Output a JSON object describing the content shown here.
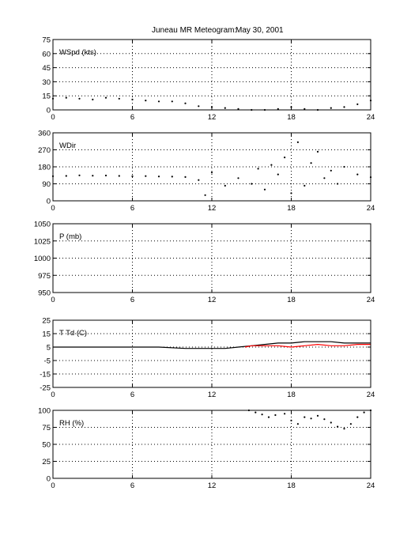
{
  "title": {
    "station": "Juneau MR Meteogram:",
    "date": "May 30, 2001"
  },
  "chart_data": [
    {
      "type": "scatter",
      "title": "WSpd (kts)",
      "ylabel": "WSpd (kts)",
      "xlim": [
        0,
        24
      ],
      "ylim": [
        0,
        75
      ],
      "xticks": [
        0,
        6,
        12,
        18,
        24
      ],
      "yticks": [
        0,
        15,
        30,
        45,
        60,
        75
      ],
      "grid": true,
      "series": [
        {
          "color": "#000000",
          "x": [
            0,
            1,
            2,
            3,
            4,
            5,
            6,
            7,
            8,
            9,
            10,
            11,
            12,
            13,
            14,
            15,
            16,
            17,
            18,
            19,
            20,
            21,
            22,
            23,
            24
          ],
          "y": [
            12,
            13,
            12,
            11,
            13,
            12,
            11,
            10,
            9,
            9,
            7,
            4,
            3,
            2,
            1,
            0,
            0,
            1,
            3,
            1,
            0,
            2,
            3,
            6,
            10
          ]
        }
      ]
    },
    {
      "type": "scatter",
      "title": "WDir",
      "ylabel": "WDir",
      "xlim": [
        0,
        24
      ],
      "ylim": [
        0,
        360
      ],
      "xticks": [
        0,
        6,
        12,
        18,
        24
      ],
      "yticks": [
        0,
        90,
        180,
        270,
        360
      ],
      "grid": true,
      "series": [
        {
          "color": "#000000",
          "x": [
            0,
            1,
            2,
            3,
            4,
            5,
            6,
            7,
            8,
            9,
            10,
            11,
            11.5,
            12,
            13,
            14,
            15,
            15.5,
            16,
            16.5,
            17,
            17.5,
            18,
            18.5,
            19,
            19.5,
            20,
            20.5,
            21,
            21.5,
            22,
            23,
            24
          ],
          "y": [
            130,
            132,
            135,
            133,
            134,
            132,
            130,
            131,
            129,
            128,
            126,
            110,
            30,
            150,
            80,
            120,
            90,
            170,
            60,
            190,
            140,
            230,
            40,
            310,
            80,
            200,
            260,
            120,
            160,
            90,
            180,
            140,
            125
          ]
        }
      ]
    },
    {
      "type": "scatter",
      "title": "P (mb)",
      "ylabel": "P (mb)",
      "xlim": [
        0,
        24
      ],
      "ylim": [
        950,
        1050
      ],
      "xticks": [
        0,
        6,
        12,
        18,
        24
      ],
      "yticks": [
        950,
        975,
        1000,
        1025,
        1050
      ],
      "grid": true,
      "series": []
    },
    {
      "type": "line",
      "title": "T Td (C)",
      "ylabel": "T Td (C)",
      "xlim": [
        0,
        24
      ],
      "ylim": [
        -25,
        25
      ],
      "xticks": [
        0,
        6,
        12,
        18,
        24
      ],
      "yticks": [
        -25,
        -15,
        -5,
        5,
        15,
        25
      ],
      "grid": true,
      "series": [
        {
          "color": "#000000",
          "x": [
            0,
            2,
            4,
            6,
            8,
            10,
            12,
            13,
            14,
            15,
            16,
            17,
            18,
            19,
            20,
            21,
            22,
            23,
            24
          ],
          "y": [
            5,
            5,
            5,
            5,
            5,
            4,
            4,
            4,
            5,
            6,
            7,
            8,
            8,
            9,
            9,
            9,
            8,
            8,
            8
          ]
        },
        {
          "color": "#ff0000",
          "x": [
            14.5,
            15,
            16,
            17,
            18,
            19,
            20,
            21,
            22,
            23,
            24
          ],
          "y": [
            5,
            6,
            6,
            6,
            5,
            6,
            7,
            6,
            6,
            7,
            7
          ]
        }
      ]
    },
    {
      "type": "scatter",
      "title": "RH (%)",
      "ylabel": "RH (%)",
      "xlim": [
        0,
        24
      ],
      "ylim": [
        0,
        100
      ],
      "xticks": [
        0,
        6,
        12,
        18,
        24
      ],
      "yticks": [
        0,
        25,
        50,
        75,
        100
      ],
      "grid": true,
      "series": [
        {
          "color": "#000000",
          "x": [
            14.8,
            15.3,
            15.8,
            16.3,
            16.8,
            17.5,
            18.0,
            18.5,
            19.0,
            19.5,
            20.0,
            20.5,
            21.0,
            21.5,
            22.0,
            22.5,
            23.0,
            23.5,
            24.0
          ],
          "y": [
            100,
            97,
            94,
            90,
            93,
            95,
            85,
            80,
            90,
            88,
            92,
            87,
            82,
            76,
            73,
            80,
            90,
            97,
            100
          ]
        }
      ]
    }
  ]
}
